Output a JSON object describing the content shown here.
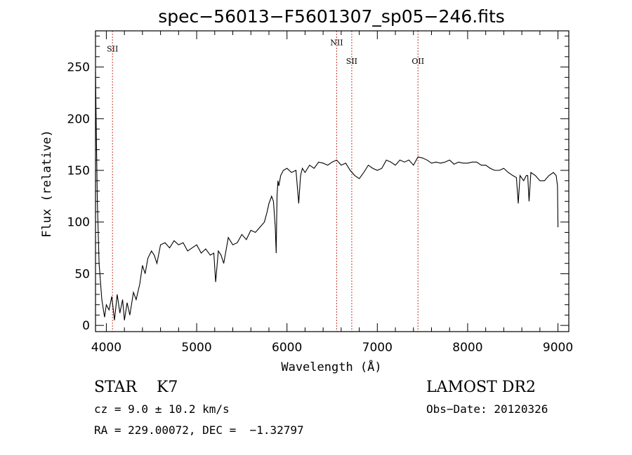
{
  "chart_data": {
    "type": "line",
    "title": "spec−56013−F5601307_sp05−246.fits",
    "xlabel": "Wavelength (Å)",
    "ylabel": "Flux (relative)",
    "xlim": [
      3880,
      9120
    ],
    "ylim": [
      -6,
      285
    ],
    "x_ticks": [
      4000,
      5000,
      6000,
      7000,
      8000,
      9000
    ],
    "y_ticks": [
      0,
      50,
      100,
      150,
      200,
      250
    ],
    "grid": false,
    "series": [
      {
        "x": [
          3880,
          3890,
          3900,
          3920,
          3950,
          3980,
          4000,
          4030,
          4060,
          4090,
          4120,
          4150,
          4180,
          4200,
          4230,
          4260,
          4300,
          4330,
          4370,
          4400,
          4430,
          4460,
          4500,
          4530,
          4560,
          4600,
          4650,
          4700,
          4750,
          4800,
          4850,
          4900,
          4950,
          5000,
          5050,
          5100,
          5150,
          5190,
          5210,
          5240,
          5270,
          5300,
          5350,
          5400,
          5450,
          5500,
          5550,
          5600,
          5650,
          5700,
          5750,
          5780,
          5800,
          5830,
          5850,
          5870,
          5880,
          5890,
          5900,
          5910,
          5930,
          5960,
          6000,
          6050,
          6100,
          6130,
          6150,
          6170,
          6200,
          6250,
          6300,
          6350,
          6400,
          6450,
          6500,
          6550,
          6600,
          6650,
          6700,
          6750,
          6800,
          6850,
          6900,
          6950,
          7000,
          7050,
          7100,
          7150,
          7200,
          7250,
          7300,
          7350,
          7400,
          7450,
          7500,
          7550,
          7600,
          7650,
          7700,
          7750,
          7800,
          7850,
          7900,
          7950,
          8000,
          8050,
          8100,
          8150,
          8200,
          8250,
          8300,
          8350,
          8400,
          8450,
          8500,
          8540,
          8560,
          8580,
          8620,
          8650,
          8665,
          8680,
          8700,
          8750,
          8800,
          8850,
          8900,
          8950,
          8980,
          8995,
          9000
        ],
        "y": [
          245,
          180,
          120,
          60,
          25,
          8,
          20,
          15,
          28,
          5,
          30,
          12,
          25,
          5,
          22,
          10,
          32,
          25,
          40,
          58,
          50,
          65,
          72,
          68,
          60,
          78,
          80,
          75,
          82,
          78,
          80,
          72,
          75,
          78,
          70,
          74,
          68,
          70,
          42,
          72,
          68,
          60,
          85,
          78,
          80,
          88,
          83,
          92,
          90,
          95,
          100,
          110,
          118,
          125,
          120,
          95,
          70,
          125,
          140,
          135,
          145,
          150,
          152,
          148,
          150,
          118,
          145,
          152,
          148,
          155,
          152,
          158,
          157,
          155,
          158,
          160,
          155,
          157,
          150,
          145,
          142,
          148,
          155,
          152,
          150,
          152,
          160,
          158,
          155,
          160,
          158,
          160,
          155,
          163,
          162,
          160,
          157,
          158,
          157,
          158,
          160,
          156,
          158,
          157,
          157,
          158,
          158,
          155,
          155,
          152,
          150,
          150,
          152,
          148,
          145,
          143,
          118,
          145,
          140,
          145,
          145,
          120,
          148,
          145,
          140,
          140,
          145,
          148,
          145,
          135,
          95
        ]
      }
    ],
    "line_markers": [
      {
        "label": "SII",
        "x": 4068,
        "label_y": 265
      },
      {
        "label": "NII",
        "x": 6550,
        "label_y": 271
      },
      {
        "label": "SII",
        "x": 6717,
        "label_y": 253
      },
      {
        "label": "OII",
        "x": 7450,
        "label_y": 253
      }
    ]
  },
  "info": {
    "class_text": "STAR    K7",
    "survey": "LAMOST DR2",
    "cz": "cz = 9.0 ± 10.2 km/s",
    "obs_date": "Obs−Date: 20120326",
    "radec": "RA = 229.00072, DEC =  −1.32797"
  }
}
